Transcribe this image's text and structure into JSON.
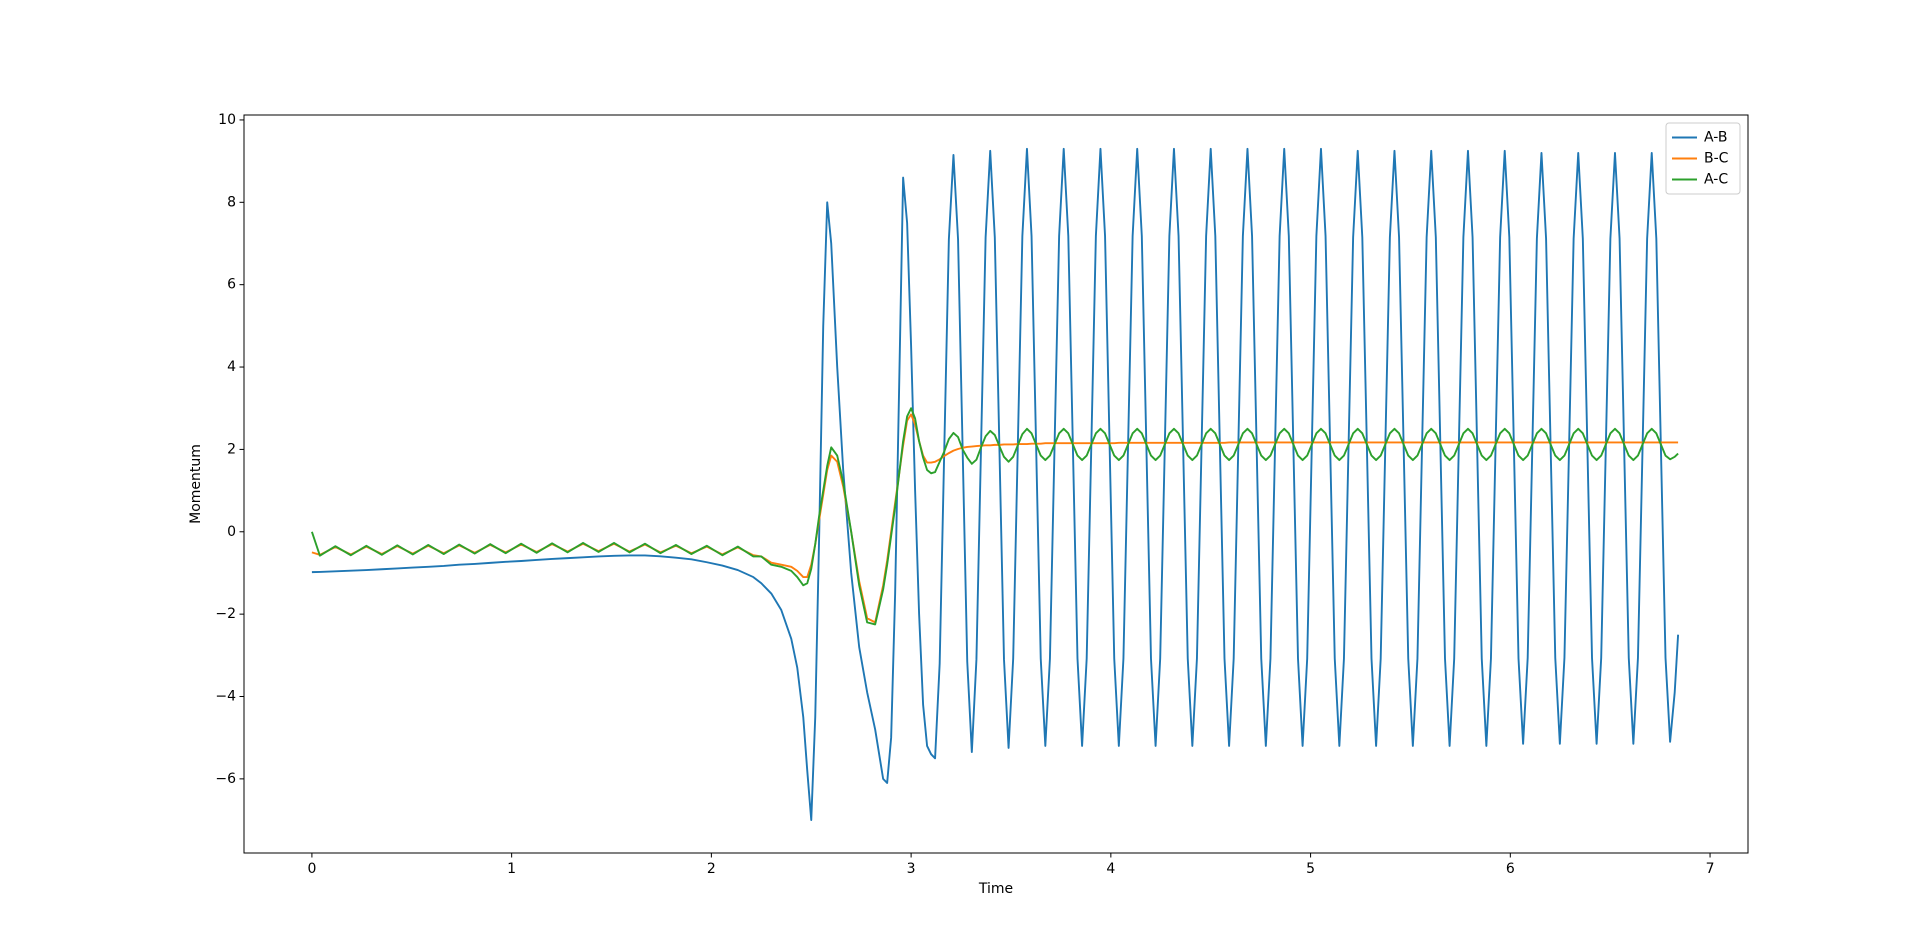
{
  "chart_data": {
    "type": "line",
    "xlabel": "Time",
    "ylabel": "Momentum",
    "xlim": [
      -0.34,
      7.19
    ],
    "ylim": [
      -7.8,
      10.12
    ],
    "xticks": [
      0,
      1,
      2,
      3,
      4,
      5,
      6,
      7
    ],
    "yticks": [
      {
        "value": -6,
        "label": "−6"
      },
      {
        "value": -4,
        "label": "−4"
      },
      {
        "value": -2,
        "label": "−2"
      },
      0,
      2,
      4,
      6,
      8,
      10
    ],
    "legend": "upper right",
    "x": [
      0,
      0.04,
      0.1175,
      0.195,
      0.2725,
      0.35,
      0.4275,
      0.505,
      0.5825,
      0.66,
      0.7375,
      0.815,
      0.8925,
      0.97,
      1.0475,
      1.125,
      1.2025,
      1.28,
      1.3575,
      1.435,
      1.5125,
      1.59,
      1.6675,
      1.745,
      1.8225,
      1.9,
      1.9775,
      2.055,
      2.1325,
      2.21,
      2.25,
      2.3,
      2.35,
      2.4,
      2.43,
      2.46,
      2.48,
      2.5,
      2.52,
      2.54,
      2.56,
      2.58,
      2.6,
      2.63,
      2.66,
      2.7,
      2.74,
      2.78,
      2.82,
      2.86,
      2.88,
      2.9,
      2.92,
      2.94,
      2.96,
      2.98,
      3.0,
      3.02,
      3.04,
      3.06,
      3.08,
      3.1,
      3.12,
      3.143,
      3.166,
      3.189,
      3.212,
      3.235,
      3.258,
      3.281,
      3.304,
      3.327,
      3.35,
      3.373,
      3.396,
      3.419,
      3.442,
      3.465,
      3.488,
      3.511,
      3.534,
      3.557,
      3.58,
      3.603,
      3.626,
      3.649,
      3.672,
      3.695,
      3.718,
      3.741,
      3.764,
      3.787,
      3.81,
      3.833,
      3.856,
      3.879,
      3.902,
      3.925,
      3.948,
      3.971,
      3.994,
      4.017,
      4.04,
      4.063,
      4.086,
      4.109,
      4.132,
      4.155,
      4.178,
      4.201,
      4.224,
      4.247,
      4.27,
      4.293,
      4.316,
      4.339,
      4.362,
      4.385,
      4.408,
      4.431,
      4.454,
      4.477,
      4.5,
      4.523,
      4.546,
      4.569,
      4.592,
      4.615,
      4.638,
      4.661,
      4.684,
      4.707,
      4.73,
      4.753,
      4.776,
      4.799,
      4.822,
      4.845,
      4.868,
      4.891,
      4.914,
      4.937,
      4.96,
      4.983,
      5.006,
      5.029,
      5.052,
      5.075,
      5.098,
      5.121,
      5.144,
      5.167,
      5.19,
      5.213,
      5.236,
      5.259,
      5.282,
      5.305,
      5.328,
      5.351,
      5.374,
      5.397,
      5.42,
      5.443,
      5.466,
      5.489,
      5.512,
      5.535,
      5.558,
      5.581,
      5.604,
      5.627,
      5.65,
      5.673,
      5.696,
      5.719,
      5.742,
      5.765,
      5.788,
      5.811,
      5.834,
      5.857,
      5.88,
      5.903,
      5.926,
      5.949,
      5.972,
      5.995,
      6.018,
      6.041,
      6.064,
      6.087,
      6.11,
      6.133,
      6.156,
      6.179,
      6.202,
      6.225,
      6.248,
      6.271,
      6.294,
      6.317,
      6.34,
      6.363,
      6.386,
      6.409,
      6.432,
      6.455,
      6.478,
      6.501,
      6.524,
      6.547,
      6.57,
      6.593,
      6.616,
      6.639,
      6.662,
      6.685,
      6.708,
      6.731,
      6.754,
      6.777,
      6.8,
      6.823,
      6.84
    ],
    "series": [
      {
        "name": "A-B",
        "color": "#1f77b4",
        "values": [
          -0.98,
          -0.975,
          -0.96,
          -0.945,
          -0.93,
          -0.91,
          -0.89,
          -0.87,
          -0.85,
          -0.83,
          -0.8,
          -0.78,
          -0.755,
          -0.73,
          -0.71,
          -0.685,
          -0.66,
          -0.64,
          -0.62,
          -0.6,
          -0.585,
          -0.575,
          -0.575,
          -0.595,
          -0.63,
          -0.67,
          -0.74,
          -0.82,
          -0.93,
          -1.1,
          -1.25,
          -1.5,
          -1.9,
          -2.6,
          -3.3,
          -4.5,
          -5.8,
          -7,
          -4.5,
          0,
          5,
          8,
          7,
          4,
          1.5,
          -1,
          -2.8,
          -3.9,
          -4.8,
          -6,
          -6.1,
          -5,
          -1.5,
          3.5,
          8.6,
          7.5,
          4.5,
          1,
          -2,
          -4.2,
          -5.2,
          -5.4,
          -5.5,
          -3.2,
          2,
          7.1,
          9.15,
          7.1,
          2,
          -3.15,
          -5.35,
          -3.1,
          2.05,
          7.15,
          9.25,
          7.15,
          2.05,
          -3.1,
          -5.25,
          -3.08,
          2.05,
          7.18,
          9.3,
          7.18,
          2.05,
          -3.08,
          -5.2,
          -3.08,
          2.05,
          7.18,
          9.3,
          7.18,
          2.05,
          -3.08,
          -5.2,
          -3.08,
          2.05,
          7.18,
          9.3,
          7.18,
          2.05,
          -3.08,
          -5.2,
          -3.08,
          2.05,
          7.18,
          9.3,
          7.18,
          2.05,
          -3.08,
          -5.2,
          -3.08,
          2.05,
          7.18,
          9.3,
          7.18,
          2.05,
          -3.08,
          -5.2,
          -3.08,
          2.05,
          7.18,
          9.3,
          7.18,
          2.05,
          -3.08,
          -5.2,
          -3.08,
          2.05,
          7.18,
          9.3,
          7.18,
          2.05,
          -3.08,
          -5.2,
          -3.08,
          2.05,
          7.18,
          9.3,
          7.18,
          2.05,
          -3.08,
          -5.2,
          -3.08,
          2.05,
          7.18,
          9.3,
          7.18,
          2.05,
          -3.08,
          -5.2,
          -3.08,
          2.05,
          7.15,
          9.25,
          7.15,
          2.05,
          -3.08,
          -5.2,
          -3.08,
          2.05,
          7.15,
          9.25,
          7.15,
          2.05,
          -3.08,
          -5.2,
          -3.08,
          2.05,
          7.15,
          9.25,
          7.15,
          2.05,
          -3.08,
          -5.2,
          -3.08,
          2.05,
          7.15,
          9.25,
          7.15,
          2.05,
          -3.08,
          -5.2,
          -3.08,
          2.05,
          7.15,
          9.25,
          7.15,
          2.05,
          -3.08,
          -5.15,
          -3.06,
          2.03,
          7.12,
          9.2,
          7.12,
          2.03,
          -3.06,
          -5.15,
          -3.06,
          2.03,
          7.12,
          9.2,
          7.12,
          2.03,
          -3.06,
          -5.15,
          -3.06,
          2.03,
          7.12,
          9.2,
          7.12,
          2.03,
          -3.06,
          -5.15,
          -3.06,
          2.03,
          7.12,
          9.2,
          7.12,
          2.03,
          -3.06,
          -5.1,
          -3.9,
          -2.5
        ]
      },
      {
        "name": "B-C",
        "color": "#ff7f0e",
        "values": [
          -0.5,
          -0.56,
          -0.37,
          -0.55,
          -0.36,
          -0.54,
          -0.35,
          -0.53,
          -0.34,
          -0.52,
          -0.33,
          -0.51,
          -0.32,
          -0.5,
          -0.31,
          -0.49,
          -0.3,
          -0.48,
          -0.29,
          -0.47,
          -0.29,
          -0.48,
          -0.31,
          -0.5,
          -0.34,
          -0.52,
          -0.36,
          -0.55,
          -0.38,
          -0.57,
          -0.6,
          -0.75,
          -0.8,
          -0.85,
          -0.95,
          -1.1,
          -1.1,
          -0.8,
          -0.3,
          0.3,
          0.9,
          1.5,
          1.85,
          1.7,
          1.1,
          0,
          -1.2,
          -2.1,
          -2.2,
          -1.3,
          -0.7,
          0,
          0.7,
          1.4,
          2.1,
          2.7,
          2.85,
          2.6,
          2.2,
          1.85,
          1.68,
          1.68,
          1.7,
          1.76,
          1.84,
          1.91,
          1.97,
          2.01,
          2.04,
          2.06,
          2.07,
          2.08,
          2.09,
          2.1,
          2.1,
          2.11,
          2.11,
          2.12,
          2.12,
          2.12,
          2.13,
          2.13,
          2.13,
          2.14,
          2.14,
          2.14,
          2.15,
          2.15,
          2.15,
          2.15,
          2.15,
          2.15,
          2.15,
          2.15,
          2.15,
          2.15,
          2.15,
          2.15,
          2.15,
          2.15,
          2.15,
          2.15,
          2.16,
          2.16,
          2.16,
          2.16,
          2.16,
          2.16,
          2.16,
          2.16,
          2.16,
          2.16,
          2.16,
          2.16,
          2.16,
          2.16,
          2.16,
          2.16,
          2.16,
          2.16,
          2.16,
          2.16,
          2.16,
          2.16,
          2.16,
          2.16,
          2.17,
          2.17,
          2.17,
          2.17,
          2.17,
          2.17,
          2.17,
          2.17,
          2.17,
          2.17,
          2.17,
          2.17,
          2.17,
          2.17,
          2.17,
          2.17,
          2.17,
          2.17,
          2.17,
          2.17,
          2.17,
          2.17,
          2.17,
          2.17,
          2.17,
          2.17,
          2.17,
          2.17,
          2.17,
          2.17,
          2.17,
          2.17,
          2.17,
          2.17,
          2.17,
          2.17,
          2.17,
          2.17,
          2.17,
          2.17,
          2.17,
          2.17,
          2.17,
          2.17,
          2.17,
          2.17,
          2.17,
          2.17,
          2.17,
          2.17,
          2.17,
          2.17,
          2.17,
          2.17,
          2.17,
          2.17,
          2.17,
          2.17,
          2.17,
          2.17,
          2.17,
          2.17,
          2.17,
          2.17,
          2.17,
          2.17,
          2.17,
          2.17,
          2.17,
          2.17,
          2.17,
          2.17,
          2.17,
          2.17,
          2.17,
          2.17,
          2.17,
          2.17,
          2.17,
          2.17,
          2.17,
          2.17,
          2.17,
          2.17,
          2.17,
          2.17,
          2.17,
          2.17,
          2.17,
          2.17,
          2.17,
          2.17,
          2.17,
          2.17,
          2.17,
          2.17,
          2.17,
          2.17,
          2.17
        ]
      },
      {
        "name": "A-C",
        "color": "#2ca02c",
        "values": [
          0,
          -0.58,
          -0.35,
          -0.57,
          -0.34,
          -0.56,
          -0.33,
          -0.55,
          -0.32,
          -0.54,
          -0.31,
          -0.53,
          -0.3,
          -0.52,
          -0.29,
          -0.51,
          -0.28,
          -0.5,
          -0.27,
          -0.49,
          -0.27,
          -0.5,
          -0.29,
          -0.52,
          -0.32,
          -0.54,
          -0.34,
          -0.57,
          -0.36,
          -0.6,
          -0.6,
          -0.8,
          -0.85,
          -0.95,
          -1.1,
          -1.3,
          -1.25,
          -0.9,
          -0.3,
          0.4,
          1,
          1.6,
          2.05,
          1.85,
          1.2,
          0,
          -1.3,
          -2.2,
          -2.25,
          -1.4,
          -0.8,
          -0.1,
          0.6,
          1.4,
          2.2,
          2.8,
          3,
          2.75,
          2.2,
          1.8,
          1.5,
          1.42,
          1.45,
          1.7,
          1.95,
          2.25,
          2.4,
          2.3,
          2,
          1.8,
          1.65,
          1.75,
          2.05,
          2.32,
          2.45,
          2.35,
          2.08,
          1.82,
          1.7,
          1.82,
          2.1,
          2.37,
          2.5,
          2.39,
          2.12,
          1.85,
          1.74,
          1.85,
          2.12,
          2.39,
          2.5,
          2.39,
          2.12,
          1.85,
          1.74,
          1.85,
          2.12,
          2.39,
          2.5,
          2.39,
          2.12,
          1.85,
          1.74,
          1.85,
          2.12,
          2.39,
          2.5,
          2.39,
          2.12,
          1.85,
          1.74,
          1.85,
          2.12,
          2.39,
          2.5,
          2.39,
          2.12,
          1.85,
          1.74,
          1.85,
          2.12,
          2.39,
          2.5,
          2.39,
          2.12,
          1.85,
          1.74,
          1.85,
          2.12,
          2.39,
          2.5,
          2.39,
          2.12,
          1.85,
          1.74,
          1.85,
          2.12,
          2.39,
          2.5,
          2.39,
          2.12,
          1.85,
          1.74,
          1.85,
          2.12,
          2.39,
          2.5,
          2.39,
          2.12,
          1.85,
          1.74,
          1.85,
          2.12,
          2.39,
          2.5,
          2.39,
          2.12,
          1.85,
          1.74,
          1.85,
          2.12,
          2.39,
          2.5,
          2.39,
          2.12,
          1.85,
          1.74,
          1.85,
          2.12,
          2.39,
          2.5,
          2.39,
          2.12,
          1.85,
          1.74,
          1.85,
          2.12,
          2.39,
          2.5,
          2.39,
          2.12,
          1.85,
          1.74,
          1.85,
          2.12,
          2.39,
          2.5,
          2.39,
          2.12,
          1.85,
          1.74,
          1.85,
          2.12,
          2.39,
          2.5,
          2.39,
          2.12,
          1.85,
          1.74,
          1.85,
          2.12,
          2.39,
          2.5,
          2.39,
          2.12,
          1.85,
          1.74,
          1.85,
          2.12,
          2.39,
          2.5,
          2.39,
          2.12,
          1.85,
          1.74,
          1.85,
          2.12,
          2.39,
          2.5,
          2.39,
          2.12,
          1.85,
          1.76,
          1.82,
          1.9
        ]
      }
    ]
  }
}
